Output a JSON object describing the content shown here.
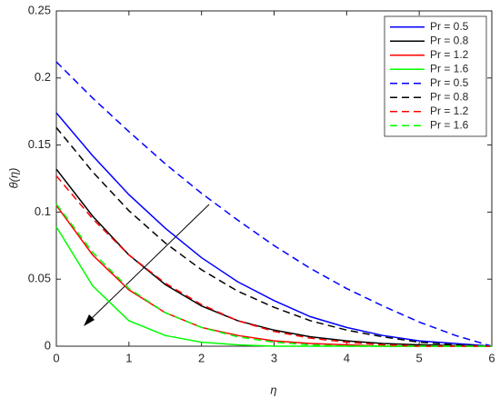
{
  "chart_data": {
    "type": "line",
    "xlabel": "η",
    "ylabel": "θ(η)",
    "x": [
      0,
      0.5,
      1,
      1.5,
      2,
      2.5,
      3,
      3.5,
      4,
      4.5,
      5,
      5.5,
      6
    ],
    "series": [
      {
        "name": "Pr = 0.5",
        "color": "#0000ff",
        "dashed": false,
        "values": [
          0.174,
          0.142,
          0.113,
          0.088,
          0.066,
          0.048,
          0.034,
          0.022,
          0.014,
          0.008,
          0.004,
          0.002,
          0
        ]
      },
      {
        "name": "Pr = 0.8",
        "color": "#000000",
        "dashed": false,
        "values": [
          0.132,
          0.097,
          0.068,
          0.046,
          0.03,
          0.019,
          0.012,
          0.007,
          0.004,
          0.002,
          0.001,
          0.0005,
          0
        ]
      },
      {
        "name": "Pr = 1.2",
        "color": "#ff0000",
        "dashed": false,
        "values": [
          0.105,
          0.068,
          0.042,
          0.025,
          0.014,
          0.008,
          0.004,
          0.002,
          0.001,
          0,
          0,
          0,
          0
        ]
      },
      {
        "name": "Pr = 1.6",
        "color": "#00ff00",
        "dashed": false,
        "values": [
          0.089,
          0.045,
          0.019,
          0.008,
          0.003,
          0.001,
          0,
          0,
          0,
          0,
          0,
          0,
          0
        ]
      },
      {
        "name": "Pr = 0.5",
        "color": "#0000ff",
        "dashed": true,
        "values": [
          0.212,
          0.185,
          0.16,
          0.136,
          0.114,
          0.094,
          0.075,
          0.058,
          0.043,
          0.03,
          0.018,
          0.008,
          0
        ]
      },
      {
        "name": "Pr = 0.8",
        "color": "#000000",
        "dashed": true,
        "values": [
          0.163,
          0.13,
          0.101,
          0.077,
          0.057,
          0.041,
          0.029,
          0.019,
          0.012,
          0.007,
          0.003,
          0.001,
          0
        ]
      },
      {
        "name": "Pr = 1.2",
        "color": "#ff0000",
        "dashed": true,
        "values": [
          0.127,
          0.095,
          0.068,
          0.047,
          0.031,
          0.019,
          0.011,
          0.006,
          0.003,
          0.001,
          0,
          0,
          0
        ]
      },
      {
        "name": "Pr = 1.6",
        "color": "#00ff00",
        "dashed": true,
        "values": [
          0.106,
          0.07,
          0.043,
          0.025,
          0.014,
          0.007,
          0.003,
          0.001,
          0,
          0,
          0,
          0,
          0
        ]
      }
    ],
    "xlim": [
      0,
      6
    ],
    "xticks": [
      0,
      1,
      2,
      3,
      4,
      5,
      6
    ],
    "ylim": [
      0,
      0.25
    ],
    "yticks": [
      0,
      0.05,
      0.1,
      0.15,
      0.2,
      0.25
    ],
    "legend": "top-right"
  }
}
